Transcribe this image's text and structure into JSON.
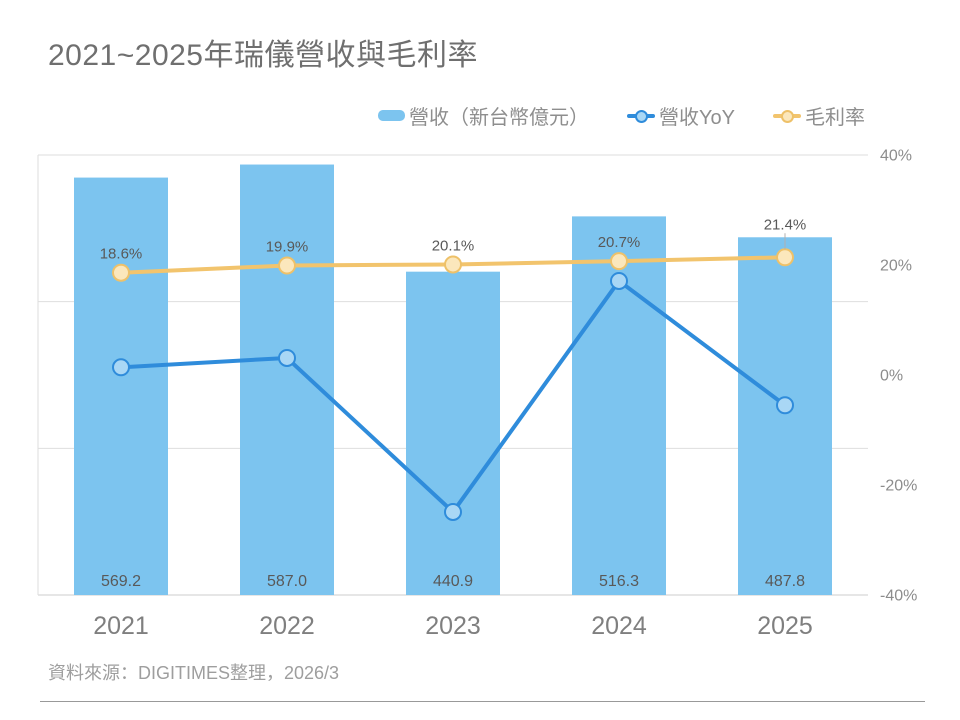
{
  "title": "2021~2025年瑞儀營收與毛利率",
  "source": "資料來源：DIGITIMES整理，2026/3",
  "legend": [
    {
      "label": "營收（新台幣億元）",
      "swatch": "bar-swatch"
    },
    {
      "label": "營收YoY",
      "swatch": "line-dot-swatch-blue"
    },
    {
      "label": "毛利率",
      "swatch": "line-dot-swatch-yellow"
    }
  ],
  "colors": {
    "bar": "#7cc4ef",
    "yoy_line": "#2f8cdb",
    "yoy_marker_fill": "#a9d7f5",
    "margin_line": "#f2c46d",
    "margin_marker_stroke": "#eec169",
    "margin_marker_fill": "#fbe7bc",
    "gridline": "#dedede",
    "baseline": "#cccccc",
    "axis_label": "#8c8c8c",
    "data_label": "#595959",
    "x_label": "#7f7f7f",
    "leader_line": "#b0b0b0"
  },
  "chart_data": {
    "type": "bar",
    "subtype": "combo-bar-line",
    "title": "2021~2025年瑞儀營收與毛利率",
    "categories": [
      "2021",
      "2022",
      "2023",
      "2024",
      "2025"
    ],
    "series": [
      {
        "name": "營收（新台幣億元）",
        "type": "bar",
        "axis": "left",
        "values": [
          569.2,
          587.0,
          440.9,
          516.3,
          487.8
        ],
        "labels": [
          "569.2",
          "587.0",
          "440.9",
          "516.3",
          "487.8"
        ]
      },
      {
        "name": "營收YoY",
        "type": "line",
        "axis": "right",
        "values": [
          1.4,
          3.1,
          -24.9,
          17.1,
          -5.5
        ],
        "labels": []
      },
      {
        "name": "毛利率",
        "type": "line",
        "axis": "right",
        "values": [
          18.6,
          19.9,
          20.1,
          20.7,
          21.4
        ],
        "labels": [
          "18.6%",
          "19.9%",
          "20.1%",
          "20.7%",
          "21.4%"
        ]
      }
    ],
    "left_axis": {
      "min": 0,
      "max": 600,
      "gridline_step": 200,
      "labels_visible": false
    },
    "right_axis": {
      "min": -40,
      "max": 40,
      "tick_values": [
        40,
        20,
        0,
        -20,
        -40
      ],
      "tick_labels": [
        "40%",
        "20%",
        "0%",
        "-20%",
        "-40%"
      ],
      "side": "right"
    },
    "grid": "horizontal-only",
    "legend_position": "top"
  }
}
